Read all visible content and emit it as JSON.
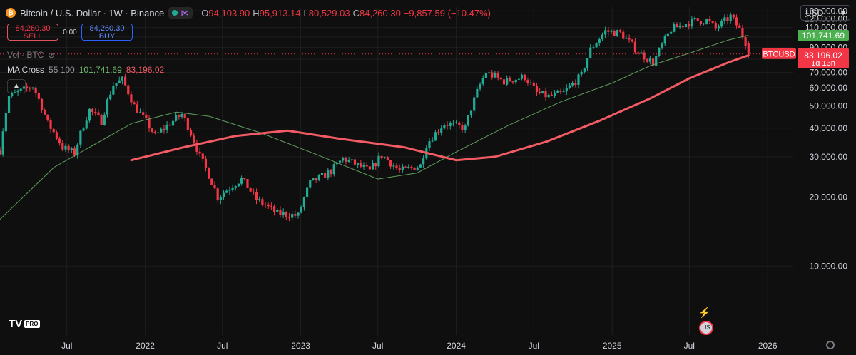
{
  "header": {
    "symbol_title": "Bitcoin / U.S. Dollar · 1W · Binance",
    "ohlc": [
      {
        "k": "O",
        "v": "94,103.90"
      },
      {
        "k": "H",
        "v": "95,913.14"
      },
      {
        "k": "L",
        "v": "80,529.03"
      },
      {
        "k": "C",
        "v": "84,260.30"
      }
    ],
    "change": "−9,857.59 (−10.47%)"
  },
  "trade": {
    "sell_price": "84,260.30",
    "sell_label": "SELL",
    "spread": "0.00",
    "buy_price": "84,260.30",
    "buy_label": "BUY"
  },
  "indicators": {
    "volume_label": "Vol · BTC",
    "ma_name": "MA Cross",
    "ma_params": "55 100",
    "ma_fast_value": "101,741.69",
    "ma_slow_value": "83,196.02"
  },
  "currency": "USD",
  "logo": {
    "text": "TV",
    "badge": "PRO"
  },
  "colors": {
    "background": "#0f0f0f",
    "up": "#22ab94",
    "down": "#f23645",
    "ma_fast": "#5f9f5f",
    "ma_slow": "#f25b64",
    "grid": "#1f1f1f"
  },
  "chart_data": {
    "type": "candlestick",
    "timeframe": "1W",
    "ylim": [
      5000,
      135000
    ],
    "y_ticks": [
      10000,
      20000,
      30000,
      40000,
      50000,
      60000,
      70000,
      80000,
      90000,
      100000,
      110000,
      120000,
      130000
    ],
    "y_tick_labels": [
      "10,000.00",
      "20,000.00",
      "30,000.00",
      "40,000.00",
      "50,000.00",
      "60,000.00",
      "70,000.00",
      "80,000.00",
      "90,000.00",
      "100,000.00",
      "110,000.00",
      "120,000.00",
      "130,000.00"
    ],
    "x_range": [
      "2021-01-25",
      "2026-03-02"
    ],
    "x_ticks": [
      {
        "date": "2021-07-01",
        "label": "Jul"
      },
      {
        "date": "2022-01-01",
        "label": "2022"
      },
      {
        "date": "2022-07-01",
        "label": "Jul"
      },
      {
        "date": "2023-01-01",
        "label": "2023"
      },
      {
        "date": "2023-07-01",
        "label": "Jul"
      },
      {
        "date": "2024-01-01",
        "label": "2024"
      },
      {
        "date": "2024-07-01",
        "label": "Jul"
      },
      {
        "date": "2025-01-01",
        "label": "2025"
      },
      {
        "date": "2025-07-01",
        "label": "Jul"
      },
      {
        "date": "2026-01-01",
        "label": "2026"
      }
    ],
    "price_path": [
      [
        "2021-01-25",
        32000
      ],
      [
        "2021-02-15",
        55000
      ],
      [
        "2021-03-15",
        58000
      ],
      [
        "2021-04-12",
        61000
      ],
      [
        "2021-05-17",
        42000
      ],
      [
        "2021-06-21",
        33000
      ],
      [
        "2021-07-19",
        31000
      ],
      [
        "2021-08-23",
        48000
      ],
      [
        "2021-09-20",
        43000
      ],
      [
        "2021-10-18",
        62000
      ],
      [
        "2021-11-08",
        65000
      ],
      [
        "2021-12-06",
        50000
      ],
      [
        "2022-01-24",
        37000
      ],
      [
        "2022-03-28",
        46000
      ],
      [
        "2022-05-09",
        30000
      ],
      [
        "2022-06-20",
        20000
      ],
      [
        "2022-08-15",
        24000
      ],
      [
        "2022-09-19",
        19500
      ],
      [
        "2022-11-07",
        17000
      ],
      [
        "2022-12-26",
        16600
      ],
      [
        "2023-01-23",
        23000
      ],
      [
        "2023-03-13",
        26000
      ],
      [
        "2023-04-10",
        29500
      ],
      [
        "2023-06-12",
        26000
      ],
      [
        "2023-07-10",
        30500
      ],
      [
        "2023-08-21",
        26000
      ],
      [
        "2023-10-09",
        27500
      ],
      [
        "2023-10-23",
        34000
      ],
      [
        "2023-12-04",
        42000
      ],
      [
        "2024-01-22",
        40000
      ],
      [
        "2024-02-26",
        62000
      ],
      [
        "2024-03-11",
        70000
      ],
      [
        "2024-04-22",
        64000
      ],
      [
        "2024-06-10",
        67000
      ],
      [
        "2024-07-08",
        57000
      ],
      [
        "2024-08-05",
        55000
      ],
      [
        "2024-09-09",
        57000
      ],
      [
        "2024-10-21",
        68000
      ],
      [
        "2024-11-11",
        88000
      ],
      [
        "2024-12-16",
        106000
      ],
      [
        "2025-01-20",
        104000
      ],
      [
        "2025-03-03",
        86000
      ],
      [
        "2025-04-07",
        77000
      ],
      [
        "2025-05-05",
        97000
      ],
      [
        "2025-05-19",
        108000
      ],
      [
        "2025-07-14",
        118000
      ],
      [
        "2025-08-11",
        118000
      ],
      [
        "2025-09-01",
        109000
      ],
      [
        "2025-10-06",
        123000
      ],
      [
        "2025-10-27",
        108000
      ],
      [
        "2025-11-10",
        95000
      ],
      [
        "2025-11-17",
        84260
      ]
    ],
    "ma_fast": {
      "name": "MA 55",
      "values": [
        [
          "2021-01-25",
          16000
        ],
        [
          "2021-06-01",
          27000
        ],
        [
          "2021-12-01",
          42000
        ],
        [
          "2022-03-15",
          47000
        ],
        [
          "2022-06-01",
          45000
        ],
        [
          "2022-10-01",
          38000
        ],
        [
          "2023-02-01",
          31000
        ],
        [
          "2023-07-01",
          24000
        ],
        [
          "2023-10-01",
          25500
        ],
        [
          "2024-01-01",
          31500
        ],
        [
          "2024-05-01",
          41000
        ],
        [
          "2024-09-01",
          52000
        ],
        [
          "2025-01-01",
          63000
        ],
        [
          "2025-04-01",
          75000
        ],
        [
          "2025-07-01",
          85000
        ],
        [
          "2025-10-01",
          97000
        ],
        [
          "2025-11-17",
          101741.69
        ]
      ]
    },
    "ma_slow": {
      "name": "MA 100",
      "values": [
        [
          "2021-11-29",
          29000
        ],
        [
          "2022-04-01",
          33000
        ],
        [
          "2022-08-01",
          37000
        ],
        [
          "2022-12-01",
          39000
        ],
        [
          "2023-04-01",
          36000
        ],
        [
          "2023-09-01",
          33000
        ],
        [
          "2024-01-01",
          29000
        ],
        [
          "2024-04-01",
          30000
        ],
        [
          "2024-08-01",
          35000
        ],
        [
          "2024-12-01",
          43000
        ],
        [
          "2025-04-01",
          54000
        ],
        [
          "2025-07-01",
          66000
        ],
        [
          "2025-10-01",
          77500
        ],
        [
          "2025-11-17",
          83196.02
        ]
      ]
    },
    "last_price": 84260.3,
    "price_labels": [
      {
        "value": 101741.69,
        "text": "101,741.69",
        "color": "#4caf50"
      },
      {
        "value": 84260.3,
        "text": "84,260.30",
        "sub": "1d 13h",
        "tag": "BTCUSD",
        "color": "#f23645"
      },
      {
        "value": 83196.02,
        "text": "83,196.02",
        "color": "#f23645"
      }
    ]
  }
}
